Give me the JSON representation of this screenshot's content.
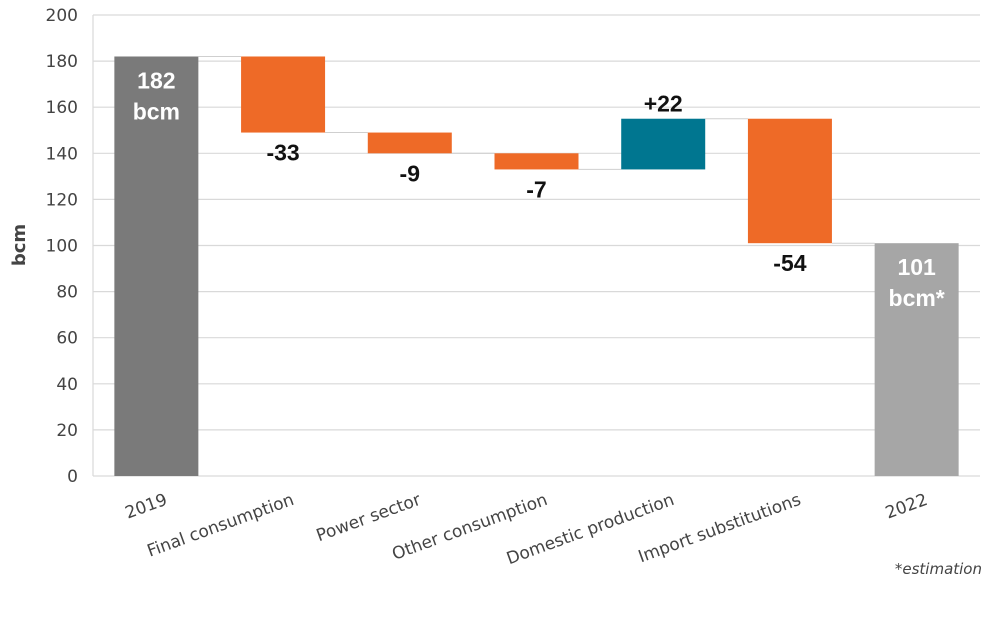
{
  "chart_data": {
    "type": "waterfall",
    "ylabel": "bcm",
    "ylim": [
      0,
      200
    ],
    "yticks": [
      0,
      20,
      40,
      60,
      80,
      100,
      120,
      140,
      160,
      180,
      200
    ],
    "grid": true,
    "categories": [
      "2019",
      "Final consumption",
      "Power sector",
      "Other consumption",
      "Domestic production",
      "Import substitutions",
      "2022"
    ],
    "steps": [
      {
        "category": "2019",
        "kind": "total",
        "start": 0,
        "end": 182,
        "label": [
          "182",
          "bcm"
        ],
        "color": "#7a7a7a",
        "label_color": "#ffffff"
      },
      {
        "category": "Final consumption",
        "kind": "delta",
        "start": 182,
        "end": 149,
        "label": [
          "-33"
        ],
        "color": "#ee6a27",
        "label_color": "#111111"
      },
      {
        "category": "Power sector",
        "kind": "delta",
        "start": 149,
        "end": 140,
        "label": [
          "-9"
        ],
        "color": "#ee6a27",
        "label_color": "#111111"
      },
      {
        "category": "Other consumption",
        "kind": "delta",
        "start": 140,
        "end": 133,
        "label": [
          "-7"
        ],
        "color": "#ee6a27",
        "label_color": "#111111"
      },
      {
        "category": "Domestic production",
        "kind": "delta",
        "start": 133,
        "end": 155,
        "label": [
          "+22"
        ],
        "color": "#007690",
        "label_color": "#111111"
      },
      {
        "category": "Import substitutions",
        "kind": "delta",
        "start": 155,
        "end": 101,
        "label": [
          "-54"
        ],
        "color": "#ee6a27",
        "label_color": "#111111"
      },
      {
        "category": "2022",
        "kind": "total",
        "start": 0,
        "end": 101,
        "label": [
          "101",
          "bcm*"
        ],
        "color": "#a6a6a6",
        "label_color": "#ffffff"
      }
    ],
    "footnote": "*estimation"
  }
}
